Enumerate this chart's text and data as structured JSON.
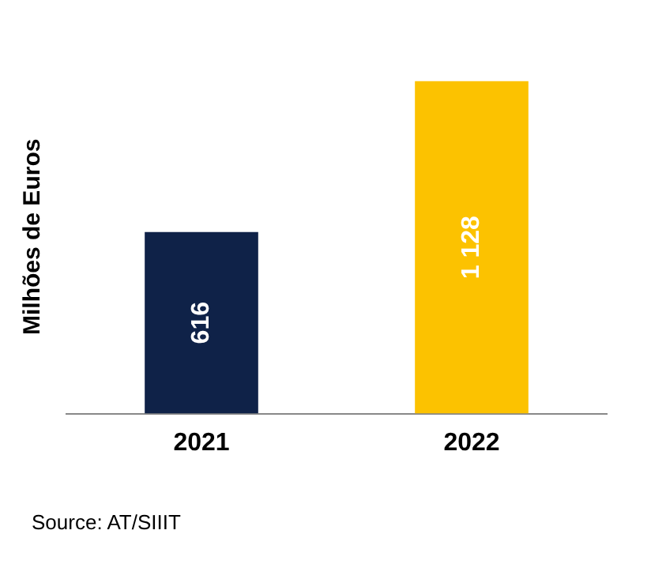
{
  "chart_data": {
    "type": "bar",
    "ylabel": "Milhões de Euros",
    "categories": [
      "2021",
      "2022"
    ],
    "values": [
      616,
      1128
    ],
    "colors": [
      "#0f2248",
      "#fcc200"
    ],
    "data_labels": true,
    "legend": false,
    "grid": false,
    "annotations": [
      "Source: AT/SIIIT"
    ]
  }
}
